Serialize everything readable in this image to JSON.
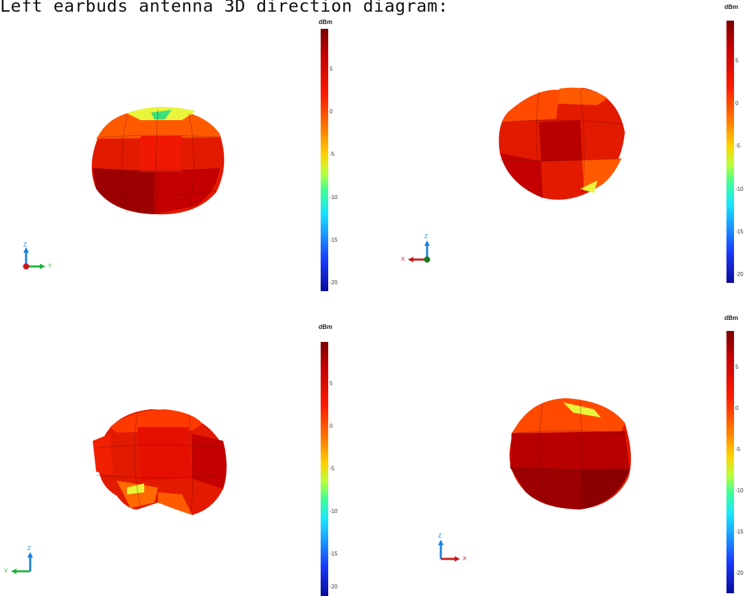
{
  "title": "Left earbuds antenna 3D direction diagram:",
  "panels": [
    {
      "unit": "dBm",
      "ticks": [
        "5",
        "0",
        "-5",
        "-10",
        "-15",
        "-20"
      ],
      "axes": [
        "Z",
        "Y"
      ]
    },
    {
      "unit": "dBm",
      "ticks": [
        "5",
        "0",
        "-5",
        "-10",
        "-15",
        "-20"
      ],
      "axes": [
        "Z",
        "X"
      ]
    },
    {
      "unit": "dBm",
      "ticks": [
        "5",
        "0",
        "-5",
        "-10",
        "-15",
        "-20"
      ],
      "axes": [
        "Z",
        "Y"
      ]
    },
    {
      "unit": "dBm",
      "ticks": [
        "5",
        "0",
        "-5",
        "-10",
        "-15",
        "-20"
      ],
      "axes": [
        "Z",
        "X"
      ]
    }
  ],
  "colors": {
    "dark_red": "#a80000",
    "red": "#e01a00",
    "orange": "#ff5a00",
    "yellow": "#e8f53a",
    "green": "#1db33a",
    "blue": "#1a7fe0"
  }
}
